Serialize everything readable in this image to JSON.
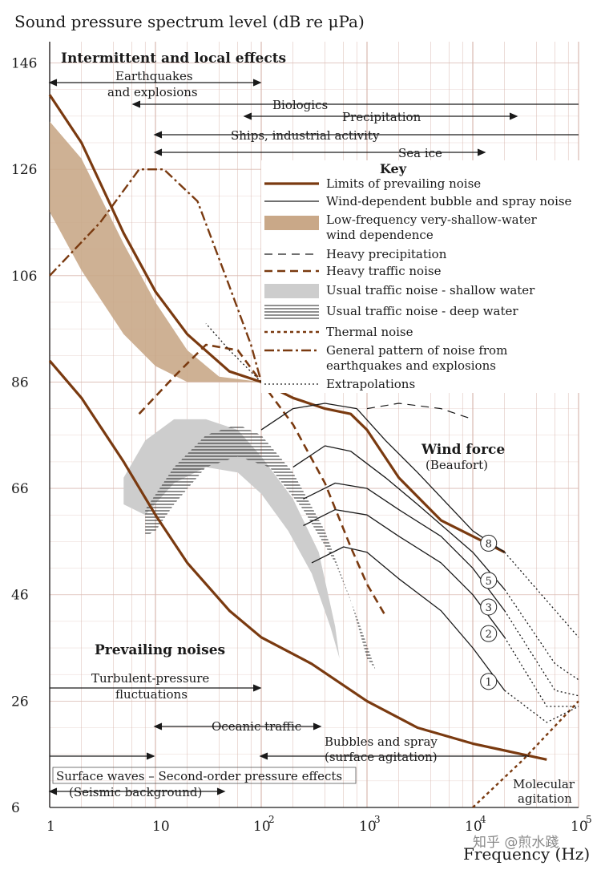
{
  "chart_data": {
    "type": "line",
    "title": "Sound pressure spectrum level (dB re μPa)",
    "xlabel": "Frequency (Hz)",
    "x_scale": "log",
    "xlim": [
      1,
      100000
    ],
    "ylim": [
      6,
      150
    ],
    "x_ticks": [
      {
        "value": 1,
        "label": "1"
      },
      {
        "value": 10,
        "label": "10"
      },
      {
        "value": 100,
        "label": "10",
        "sup": "2"
      },
      {
        "value": 1000,
        "label": "10",
        "sup": "3"
      },
      {
        "value": 10000,
        "label": "10",
        "sup": "4"
      },
      {
        "value": 100000,
        "label": "10",
        "sup": "5"
      }
    ],
    "y_ticks": [
      6,
      26,
      46,
      66,
      86,
      106,
      126,
      146
    ],
    "colors": {
      "brown": "#7a3a10",
      "band": "#c9a888",
      "gray": "#cdcdcd",
      "grid": "#d9b9b0",
      "black": "#1a1a1a"
    },
    "section_titles": {
      "top": "Intermittent and local effects",
      "bottom": "Prevailing noises",
      "wind": "Wind force",
      "wind_sub": "(Beaufort)"
    },
    "top_arrows": [
      {
        "label": "Earthquakes",
        "label2": "and explosions"
      },
      {
        "label": "Biologics"
      },
      {
        "label": "Precipitation"
      },
      {
        "label": "Ships, industrial activity"
      },
      {
        "label": "Sea ice"
      }
    ],
    "bottom_labels": {
      "turbulent": "Turbulent-pressure",
      "turbulent2": "fluctuations",
      "oceanic": "Oceanic traffic",
      "bubbles": "Bubbles and spray",
      "bubbles2": "(surface agitation)",
      "waves": "Surface waves – Second-order pressure effects",
      "seismic": "(Seismic background)",
      "molecular": "Molecular",
      "molecular2": "agitation"
    },
    "key": {
      "title": "Key",
      "items": [
        {
          "style": "thick",
          "label": "Limits of prevailing noise"
        },
        {
          "style": "thin",
          "label": "Wind-dependent bubble and spray noise"
        },
        {
          "style": "band",
          "label": "Low-frequency very-shallow-water",
          "label2": "wind dependence"
        },
        {
          "style": "dash",
          "label": "Heavy precipitation"
        },
        {
          "style": "dash-brown",
          "label": "Heavy traffic noise"
        },
        {
          "style": "gray",
          "label": "Usual traffic noise - shallow water"
        },
        {
          "style": "hatch",
          "label": "Usual traffic noise - deep water"
        },
        {
          "style": "dot-brown",
          "label": "Thermal noise"
        },
        {
          "style": "dashdot-brown",
          "label": "General pattern of noise from",
          "label2": "earthquakes and explosions"
        },
        {
          "style": "dot",
          "label": "Extrapolations"
        }
      ]
    },
    "series": [
      {
        "name": "Limits of prevailing noise",
        "points": [
          [
            1,
            140
          ],
          [
            2,
            131
          ],
          [
            5,
            114
          ],
          [
            10,
            103
          ],
          [
            20,
            95
          ],
          [
            50,
            88
          ],
          [
            100,
            86
          ],
          [
            200,
            83
          ],
          [
            400,
            81
          ],
          [
            700,
            80
          ],
          [
            1000,
            77
          ],
          [
            2000,
            68
          ],
          [
            5000,
            60
          ],
          [
            10000,
            57
          ],
          [
            20000,
            54
          ]
        ]
      },
      {
        "name": "Limits of prevailing noise",
        "points": [
          [
            1,
            90
          ],
          [
            2,
            83
          ],
          [
            5,
            71
          ],
          [
            10,
            61
          ],
          [
            20,
            52
          ],
          [
            50,
            43
          ],
          [
            100,
            38
          ],
          [
            300,
            33
          ],
          [
            1000,
            26
          ],
          [
            3000,
            21
          ],
          [
            10000,
            18
          ],
          [
            50000,
            15
          ]
        ]
      },
      {
        "name": "Heavy precipitation",
        "points": [
          [
            1000,
            81
          ],
          [
            2000,
            82
          ],
          [
            5000,
            81
          ],
          [
            10000,
            79
          ]
        ]
      },
      {
        "name": "Heavy traffic noise",
        "points": [
          [
            7,
            80
          ],
          [
            15,
            87
          ],
          [
            30,
            93
          ],
          [
            60,
            92
          ],
          [
            100,
            86
          ],
          [
            200,
            78
          ],
          [
            400,
            67
          ],
          [
            700,
            55
          ],
          [
            1000,
            48
          ],
          [
            1500,
            42
          ]
        ]
      },
      {
        "name": "Thermal noise",
        "points": [
          [
            10000,
            6
          ],
          [
            30000,
            15
          ],
          [
            100000,
            26
          ]
        ]
      },
      {
        "name": "General pattern of noise from earthquakes and explosions",
        "points": [
          [
            1,
            106
          ],
          [
            3,
            116
          ],
          [
            7,
            126
          ],
          [
            12,
            126
          ],
          [
            25,
            120
          ],
          [
            50,
            104
          ],
          [
            80,
            93
          ],
          [
            100,
            86
          ]
        ]
      },
      {
        "name": "Wind force 8",
        "points": [
          [
            100,
            77
          ],
          [
            200,
            81
          ],
          [
            400,
            82
          ],
          [
            800,
            81
          ],
          [
            1500,
            75
          ],
          [
            3000,
            69
          ],
          [
            10000,
            58
          ],
          [
            20000,
            54
          ]
        ]
      },
      {
        "name": "Wind force 5",
        "points": [
          [
            200,
            70
          ],
          [
            400,
            74
          ],
          [
            700,
            73
          ],
          [
            1500,
            68
          ],
          [
            3000,
            63
          ],
          [
            10000,
            54
          ],
          [
            20000,
            47
          ]
        ]
      },
      {
        "name": "Wind force 3",
        "points": [
          [
            250,
            64
          ],
          [
            500,
            67
          ],
          [
            1000,
            66
          ],
          [
            2000,
            62
          ],
          [
            5000,
            57
          ],
          [
            10000,
            51
          ],
          [
            20000,
            43
          ]
        ]
      },
      {
        "name": "Wind force 2",
        "points": [
          [
            250,
            59
          ],
          [
            500,
            62
          ],
          [
            1000,
            61
          ],
          [
            2000,
            57
          ],
          [
            5000,
            52
          ],
          [
            10000,
            46
          ],
          [
            20000,
            38
          ]
        ]
      },
      {
        "name": "Wind force 1",
        "points": [
          [
            300,
            52
          ],
          [
            600,
            55
          ],
          [
            1000,
            54
          ],
          [
            2000,
            49
          ],
          [
            5000,
            43
          ],
          [
            10000,
            36
          ],
          [
            20000,
            28
          ]
        ]
      }
    ],
    "wind_forces": [
      "8",
      "5",
      "3",
      "2",
      "1"
    ]
  },
  "watermark": "知乎 @煎水踐"
}
